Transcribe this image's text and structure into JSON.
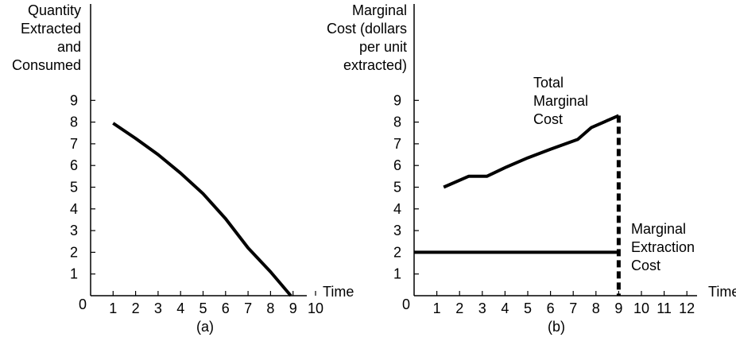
{
  "chart_data": [
    {
      "type": "line",
      "panel_label": "(a)",
      "ylabel_lines": [
        "Quantity",
        "Extracted",
        "and",
        "Consumed"
      ],
      "xlabel": "Time",
      "x_ticks": [
        "1",
        "2",
        "3",
        "4",
        "5",
        "6",
        "7",
        "8",
        "9",
        "10"
      ],
      "y_ticks": [
        "1",
        "2",
        "3",
        "4",
        "5",
        "6",
        "7",
        "8",
        "9"
      ],
      "origin_label": "0",
      "xlim": [
        0,
        10
      ],
      "ylim": [
        0,
        9
      ],
      "series": [
        {
          "x": [
            1,
            2,
            3,
            4,
            5,
            6,
            7,
            8,
            8.9
          ],
          "y": [
            7.95,
            7.25,
            6.5,
            5.65,
            4.7,
            3.55,
            2.2,
            1.1,
            0
          ]
        }
      ],
      "colors": {
        "line": "#000000"
      }
    },
    {
      "type": "line",
      "panel_label": "(b)",
      "ylabel_lines": [
        "Marginal",
        "Cost (dollars",
        "per unit",
        "extracted)"
      ],
      "xlabel": "Time",
      "x_ticks": [
        "1",
        "2",
        "3",
        "4",
        "5",
        "6",
        "7",
        "8",
        "9",
        "10",
        "11",
        "12"
      ],
      "y_ticks": [
        "1",
        "2",
        "3",
        "4",
        "5",
        "6",
        "7",
        "8",
        "9"
      ],
      "origin_label": "0",
      "xlim": [
        0,
        12
      ],
      "ylim": [
        0,
        9
      ],
      "annotations": [
        {
          "lines": [
            "Total",
            "Marginal",
            "Cost"
          ]
        },
        {
          "lines": [
            "Marginal",
            "Extraction",
            "Cost"
          ]
        }
      ],
      "series": [
        {
          "x": [
            1.3,
            2.4,
            3.2,
            4,
            5,
            6,
            7.2,
            7.8,
            9
          ],
          "y": [
            5.0,
            5.5,
            5.5,
            5.9,
            6.35,
            6.75,
            7.2,
            7.75,
            8.3
          ]
        },
        {
          "x": [
            0,
            9
          ],
          "y": [
            2,
            2
          ]
        }
      ],
      "vertical_dashed": {
        "x": 9,
        "y_from": 0,
        "y_to": 8.3
      },
      "colors": {
        "line": "#000000"
      }
    }
  ]
}
